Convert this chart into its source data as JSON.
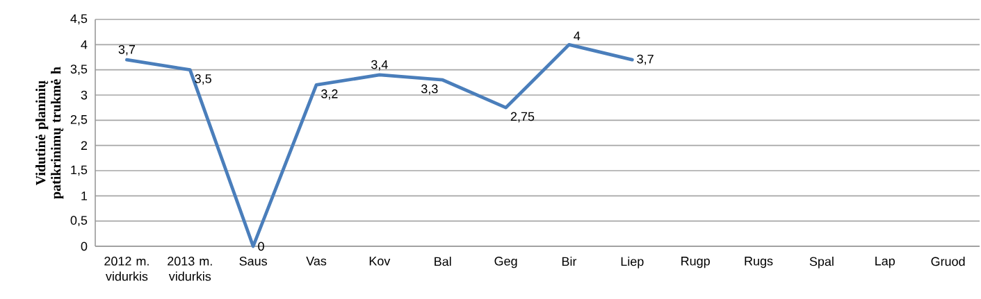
{
  "chart_data": {
    "type": "line",
    "ylabel": "Vidutinė planinių patikrinimų trukmė h",
    "categories": [
      "2012 m. vidurkis",
      "2013 m. vidurkis",
      "Saus",
      "Vas",
      "Kov",
      "Bal",
      "Geg",
      "Bir",
      "Liep",
      "Rugp",
      "Rugs",
      "Spal",
      "Lap",
      "Gruod"
    ],
    "values": [
      3.7,
      3.5,
      0,
      3.2,
      3.4,
      3.3,
      2.75,
      4,
      3.7,
      null,
      null,
      null,
      null,
      null
    ],
    "value_labels": [
      "3,7",
      "3,5",
      "0",
      "3,2",
      "3,4",
      "3,3",
      "2,75",
      "4",
      "3,7",
      null,
      null,
      null,
      null,
      null
    ],
    "color": "#4a7ebb",
    "ylim": [
      0,
      4.5
    ],
    "yticks": [
      0,
      {
        "value": 0.5,
        "label": "0,5"
      },
      1,
      {
        "value": 1.5,
        "label": "1,5"
      },
      2,
      {
        "value": 2.5,
        "label": "2,5"
      },
      3,
      {
        "value": 3.5,
        "label": "3,5"
      },
      4,
      {
        "value": 4.5,
        "label": "4,5"
      }
    ],
    "grid": "y"
  }
}
